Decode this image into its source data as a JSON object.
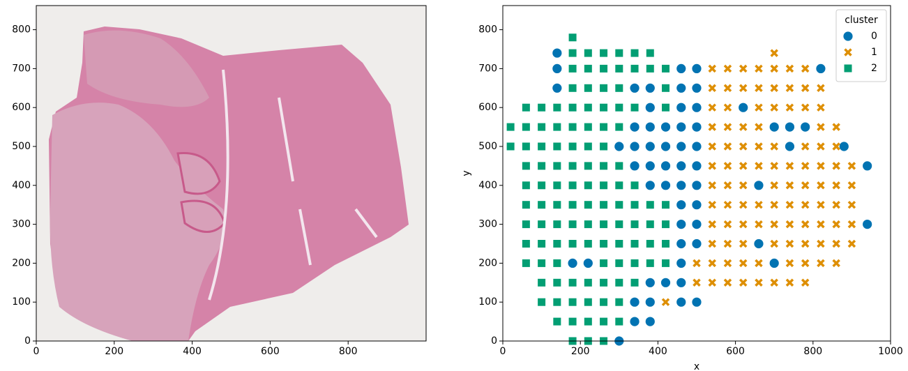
{
  "chart_data": [
    {
      "type": "image",
      "xlim": [
        0,
        1000
      ],
      "ylim": [
        0,
        862
      ],
      "xticks": [
        0,
        200,
        400,
        600,
        800
      ],
      "yticks": [
        0,
        100,
        200,
        300,
        400,
        500,
        600,
        700,
        800
      ]
    },
    {
      "type": "scatter",
      "xlabel": "x",
      "ylabel": "y",
      "xlim": [
        0,
        1000
      ],
      "ylim": [
        0,
        862
      ],
      "xticks": [
        0,
        200,
        400,
        600,
        800,
        1000
      ],
      "yticks": [
        0,
        100,
        200,
        300,
        400,
        500,
        600,
        700,
        800
      ],
      "legend_title": "cluster",
      "legend": "upper right",
      "series": [
        {
          "name": "0",
          "color": "#0173b2",
          "marker": "circle",
          "x": [
            140,
            140,
            460,
            500,
            820,
            140,
            340,
            380,
            460,
            500,
            380,
            460,
            500,
            620,
            340,
            380,
            420,
            460,
            500,
            700,
            740,
            780,
            300,
            340,
            380,
            420,
            460,
            500,
            740,
            880,
            340,
            380,
            420,
            460,
            500,
            940,
            380,
            420,
            460,
            500,
            660,
            460,
            500,
            460,
            500,
            940,
            460,
            500,
            660,
            180,
            220,
            460,
            700,
            380,
            420,
            460,
            340,
            380,
            460,
            500,
            340,
            380,
            300
          ],
          "values": [
            740,
            700,
            700,
            700,
            700,
            650,
            650,
            650,
            650,
            650,
            600,
            600,
            600,
            600,
            550,
            550,
            550,
            550,
            550,
            550,
            550,
            550,
            500,
            500,
            500,
            500,
            500,
            500,
            500,
            500,
            450,
            450,
            450,
            450,
            450,
            450,
            400,
            400,
            400,
            400,
            400,
            350,
            350,
            300,
            300,
            300,
            250,
            250,
            250,
            200,
            200,
            200,
            200,
            150,
            150,
            150,
            100,
            100,
            100,
            100,
            50,
            50,
            0
          ]
        },
        {
          "name": "1",
          "color": "#de8f05",
          "marker": "x",
          "x": [
            700,
            540,
            580,
            620,
            660,
            700,
            740,
            780,
            540,
            580,
            620,
            660,
            700,
            740,
            780,
            820,
            540,
            580,
            660,
            700,
            740,
            780,
            820,
            540,
            580,
            620,
            660,
            820,
            860,
            540,
            580,
            620,
            660,
            700,
            780,
            820,
            860,
            540,
            580,
            620,
            660,
            700,
            740,
            780,
            820,
            860,
            900,
            540,
            580,
            620,
            700,
            740,
            780,
            820,
            860,
            900,
            540,
            580,
            620,
            660,
            700,
            740,
            780,
            820,
            860,
            900,
            540,
            580,
            620,
            660,
            700,
            740,
            780,
            820,
            860,
            900,
            540,
            580,
            620,
            700,
            740,
            780,
            820,
            860,
            900,
            500,
            540,
            580,
            620,
            660,
            740,
            780,
            820,
            860,
            500,
            540,
            580,
            620,
            660,
            700,
            740,
            780,
            420
          ],
          "values": [
            740,
            700,
            700,
            700,
            700,
            700,
            700,
            700,
            650,
            650,
            650,
            650,
            650,
            650,
            650,
            650,
            600,
            600,
            600,
            600,
            600,
            600,
            600,
            550,
            550,
            550,
            550,
            550,
            550,
            500,
            500,
            500,
            500,
            500,
            500,
            500,
            500,
            450,
            450,
            450,
            450,
            450,
            450,
            450,
            450,
            450,
            450,
            400,
            400,
            400,
            400,
            400,
            400,
            400,
            400,
            400,
            350,
            350,
            350,
            350,
            350,
            350,
            350,
            350,
            350,
            350,
            300,
            300,
            300,
            300,
            300,
            300,
            300,
            300,
            300,
            300,
            250,
            250,
            250,
            250,
            250,
            250,
            250,
            250,
            250,
            200,
            200,
            200,
            200,
            200,
            200,
            200,
            200,
            200,
            150,
            150,
            150,
            150,
            150,
            150,
            150,
            150,
            100
          ]
        },
        {
          "name": "2",
          "color": "#029e73",
          "marker": "square",
          "x": [
            180,
            180,
            220,
            260,
            300,
            340,
            380,
            180,
            220,
            260,
            300,
            340,
            380,
            420,
            180,
            220,
            260,
            300,
            420,
            60,
            100,
            140,
            180,
            220,
            260,
            300,
            340,
            420,
            20,
            60,
            100,
            140,
            180,
            220,
            260,
            300,
            20,
            60,
            100,
            140,
            180,
            220,
            260,
            60,
            100,
            140,
            180,
            220,
            260,
            300,
            60,
            100,
            140,
            180,
            220,
            260,
            300,
            340,
            60,
            100,
            140,
            180,
            220,
            260,
            300,
            340,
            380,
            420,
            60,
            100,
            140,
            180,
            220,
            260,
            300,
            340,
            380,
            420,
            60,
            100,
            140,
            180,
            220,
            260,
            300,
            340,
            380,
            420,
            60,
            100,
            140,
            260,
            300,
            340,
            380,
            420,
            100,
            140,
            180,
            220,
            260,
            300,
            340,
            100,
            140,
            180,
            220,
            260,
            300,
            140,
            180,
            220,
            260,
            300,
            180,
            220,
            260
          ],
          "values": [
            780,
            740,
            740,
            740,
            740,
            740,
            740,
            700,
            700,
            700,
            700,
            700,
            700,
            700,
            650,
            650,
            650,
            650,
            650,
            600,
            600,
            600,
            600,
            600,
            600,
            600,
            600,
            600,
            550,
            550,
            550,
            550,
            550,
            550,
            550,
            550,
            500,
            500,
            500,
            500,
            500,
            500,
            500,
            450,
            450,
            450,
            450,
            450,
            450,
            450,
            400,
            400,
            400,
            400,
            400,
            400,
            400,
            400,
            350,
            350,
            350,
            350,
            350,
            350,
            350,
            350,
            350,
            350,
            300,
            300,
            300,
            300,
            300,
            300,
            300,
            300,
            300,
            300,
            250,
            250,
            250,
            250,
            250,
            250,
            250,
            250,
            250,
            250,
            200,
            200,
            200,
            200,
            200,
            200,
            200,
            200,
            150,
            150,
            150,
            150,
            150,
            150,
            150,
            100,
            100,
            100,
            100,
            100,
            100,
            50,
            50,
            50,
            50,
            50,
            0,
            0,
            0
          ]
        }
      ]
    }
  ]
}
